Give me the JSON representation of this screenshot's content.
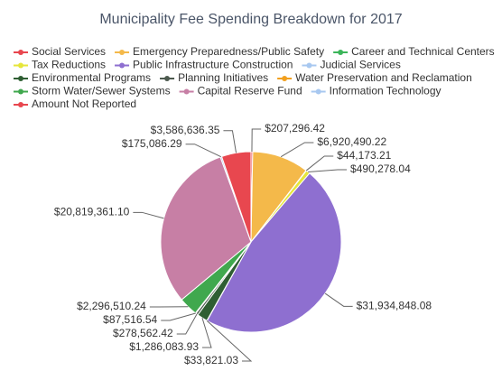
{
  "chart_data": {
    "type": "pie",
    "title": "Municipality Fee Spending Breakdown for 2017",
    "categories": [
      "Social Services",
      "Emergency Preparedness/Public Safety",
      "Career and Technical Centers",
      "Tax Reductions",
      "Public Infrastructure Construction",
      "Judicial Services",
      "Environmental Programs",
      "Planning Initiatives",
      "Water Preservation and Reclamation",
      "Storm Water/Sewer Systems",
      "Capital Reserve Fund",
      "Information Technology",
      "Amount Not Reported"
    ],
    "values": [
      207296.42,
      6920490.22,
      44173.21,
      490278.04,
      31934848.08,
      33821.03,
      1286083.93,
      278562.42,
      87516.54,
      2296510.24,
      20819361.1,
      175086.29,
      3586636.35
    ],
    "value_labels": [
      "$207,296.42",
      "$6,920,490.22",
      "$44,173.21",
      "$490,278.04",
      "$31,934,848.08",
      "$33,821.03",
      "$1,286,083.93",
      "$278,562.42",
      "$87,516.54",
      "$2,296,510.24",
      "$20,819,361.10",
      "$175,086.29",
      "$3,586,636.35"
    ],
    "colors": [
      "#e8474f",
      "#f4b94a",
      "#3cb55a",
      "#e6e63a",
      "#8e6fd0",
      "#a8c8f0",
      "#2f5e33",
      "#4d5a4f",
      "#f2a01e",
      "#40a84e",
      "#c77fa5",
      "#a8c8f0",
      "#e8474f"
    ]
  }
}
